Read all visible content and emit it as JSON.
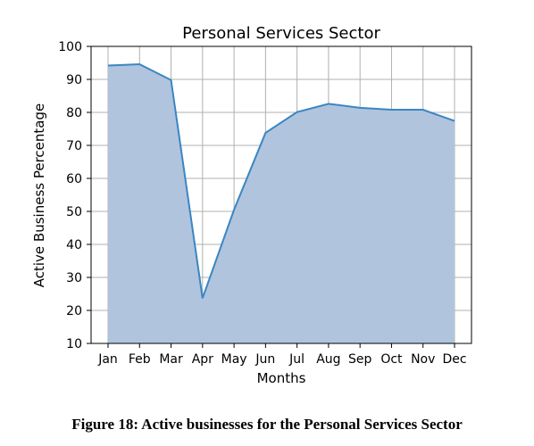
{
  "chart_data": {
    "type": "area",
    "title": "Personal Services Sector",
    "xlabel": "Months",
    "ylabel": "Active Business Percentage",
    "categories": [
      "Jan",
      "Feb",
      "Mar",
      "Apr",
      "May",
      "Jun",
      "Jul",
      "Aug",
      "Sep",
      "Oct",
      "Nov",
      "Dec"
    ],
    "values": [
      94.2,
      94.6,
      89.8,
      23.7,
      50.5,
      73.8,
      80.1,
      82.6,
      81.4,
      80.8,
      80.8,
      77.4
    ],
    "ylim": [
      10,
      100
    ],
    "yticks": [
      10,
      20,
      30,
      40,
      50,
      60,
      70,
      80,
      90,
      100
    ],
    "grid": true,
    "colors": {
      "line": "#3a86c2",
      "fill": "#b0c4de",
      "grid": "#b0b0b0"
    }
  },
  "caption": "Figure 18: Active businesses for the Personal Services Sector"
}
